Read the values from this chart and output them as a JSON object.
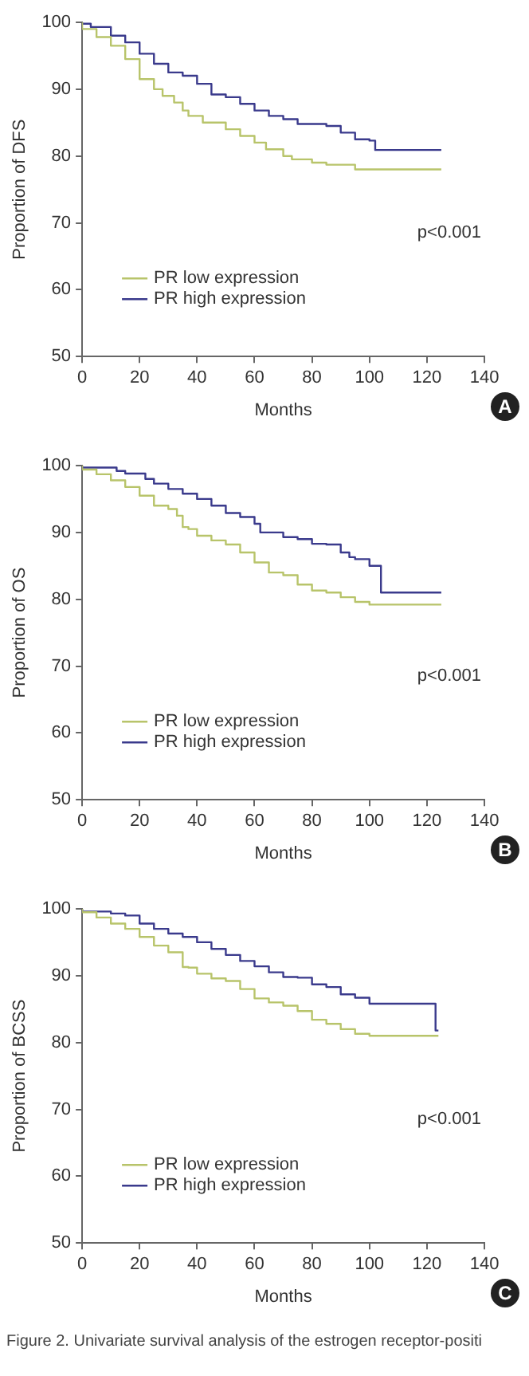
{
  "chart_data": [
    {
      "type": "step",
      "xlabel": "Months",
      "ylabel": "Proportion of DFS",
      "xlim": [
        0,
        140
      ],
      "xticks": [
        0,
        20,
        40,
        60,
        80,
        100,
        120,
        140
      ],
      "ylim": [
        50,
        100
      ],
      "yticks": [
        50,
        60,
        70,
        80,
        90,
        100
      ],
      "legend": "bottom left",
      "annotations": [
        "p<0.001",
        "A"
      ],
      "series": [
        {
          "name": "PR low expression",
          "color": "#b8c46a",
          "x": [
            0,
            5,
            10,
            15,
            20,
            25,
            28,
            32,
            35,
            37,
            42,
            50,
            55,
            60,
            64,
            70,
            73,
            80,
            85,
            95,
            100,
            125
          ],
          "values": [
            100,
            99,
            97.8,
            96.5,
            94.5,
            91.5,
            90,
            89,
            88,
            86.8,
            86,
            85,
            84,
            83,
            82,
            81,
            80,
            79.5,
            79,
            78.7,
            78,
            78
          ]
        },
        {
          "name": "PR high expression",
          "color": "#3a3a8c",
          "x": [
            0,
            3,
            10,
            15,
            20,
            25,
            30,
            35,
            40,
            45,
            50,
            55,
            60,
            65,
            70,
            75,
            85,
            90,
            95,
            100,
            102,
            121,
            125
          ],
          "values": [
            100,
            99.8,
            99.3,
            98,
            97,
            95.3,
            93.8,
            92.5,
            92,
            90.8,
            89.2,
            88.8,
            87.8,
            86.8,
            86,
            85.5,
            84.8,
            84.5,
            83.5,
            82.5,
            82.3,
            80.9,
            80.9
          ]
        }
      ]
    },
    {
      "type": "step",
      "xlabel": "Months",
      "ylabel": "Proportion of OS",
      "xlim": [
        0,
        140
      ],
      "xticks": [
        0,
        20,
        40,
        60,
        80,
        100,
        120,
        140
      ],
      "ylim": [
        50,
        100
      ],
      "yticks": [
        50,
        60,
        70,
        80,
        90,
        100
      ],
      "legend": "bottom left",
      "annotations": [
        "p<0.001",
        "B"
      ],
      "series": [
        {
          "name": "PR low expression",
          "color": "#b8c46a",
          "x": [
            0,
            5,
            10,
            15,
            20,
            25,
            30,
            33,
            35,
            37,
            40,
            45,
            50,
            55,
            60,
            65,
            70,
            75,
            80,
            85,
            90,
            95,
            100,
            104,
            125
          ],
          "values": [
            100,
            99.4,
            98.7,
            97.8,
            96.8,
            95.5,
            94,
            93.5,
            92.5,
            90.8,
            90.5,
            89.5,
            88.8,
            88.2,
            87,
            85.5,
            84,
            83.6,
            82.2,
            81.3,
            81,
            80.3,
            79.6,
            79.2,
            79.2
          ]
        },
        {
          "name": "PR high expression",
          "color": "#3a3a8c",
          "x": [
            0,
            12,
            15,
            22,
            25,
            30,
            35,
            40,
            45,
            50,
            55,
            60,
            62,
            70,
            75,
            80,
            85,
            90,
            93,
            95,
            100,
            104,
            124,
            125
          ],
          "values": [
            100,
            99.7,
            99.2,
            98.8,
            98,
            97.3,
            96.5,
            95.8,
            95,
            94,
            92.9,
            92.3,
            91.3,
            90,
            89.3,
            89,
            88.3,
            88.2,
            87,
            86.3,
            86,
            85,
            81,
            81
          ]
        }
      ]
    },
    {
      "type": "step",
      "xlabel": "Months",
      "ylabel": "Proportion of BCSS",
      "xlim": [
        0,
        140
      ],
      "xticks": [
        0,
        20,
        40,
        60,
        80,
        100,
        120,
        140
      ],
      "ylim": [
        50,
        100
      ],
      "yticks": [
        50,
        60,
        70,
        80,
        90,
        100
      ],
      "legend": "bottom left",
      "annotations": [
        "p<0.001",
        "C",
        "Figure 2. Univariate survival analysis of the estrogen receptor-positi"
      ],
      "series": [
        {
          "name": "PR low expression",
          "color": "#b8c46a",
          "x": [
            0,
            5,
            10,
            15,
            20,
            25,
            30,
            35,
            37,
            40,
            45,
            50,
            55,
            60,
            65,
            70,
            75,
            80,
            85,
            90,
            95,
            100,
            104,
            124
          ],
          "values": [
            100,
            99.5,
            98.7,
            97.8,
            97,
            95.8,
            94.5,
            93.5,
            91.3,
            91.2,
            90.3,
            89.6,
            89.2,
            88,
            86.6,
            86,
            85.5,
            84.7,
            83.4,
            82.8,
            82,
            81.3,
            81,
            81
          ]
        },
        {
          "name": "PR high expression",
          "color": "#3a3a8c",
          "x": [
            0,
            10,
            15,
            20,
            25,
            30,
            35,
            40,
            45,
            50,
            55,
            60,
            65,
            70,
            75,
            80,
            85,
            90,
            95,
            100,
            103,
            123,
            124
          ],
          "values": [
            100,
            99.6,
            99.3,
            99,
            97.8,
            97,
            96.3,
            95.8,
            95,
            94,
            93.1,
            92.2,
            91.4,
            90.5,
            89.8,
            89.7,
            88.7,
            88.3,
            87.2,
            86.7,
            85.8,
            85.8,
            81.8
          ]
        }
      ]
    }
  ]
}
